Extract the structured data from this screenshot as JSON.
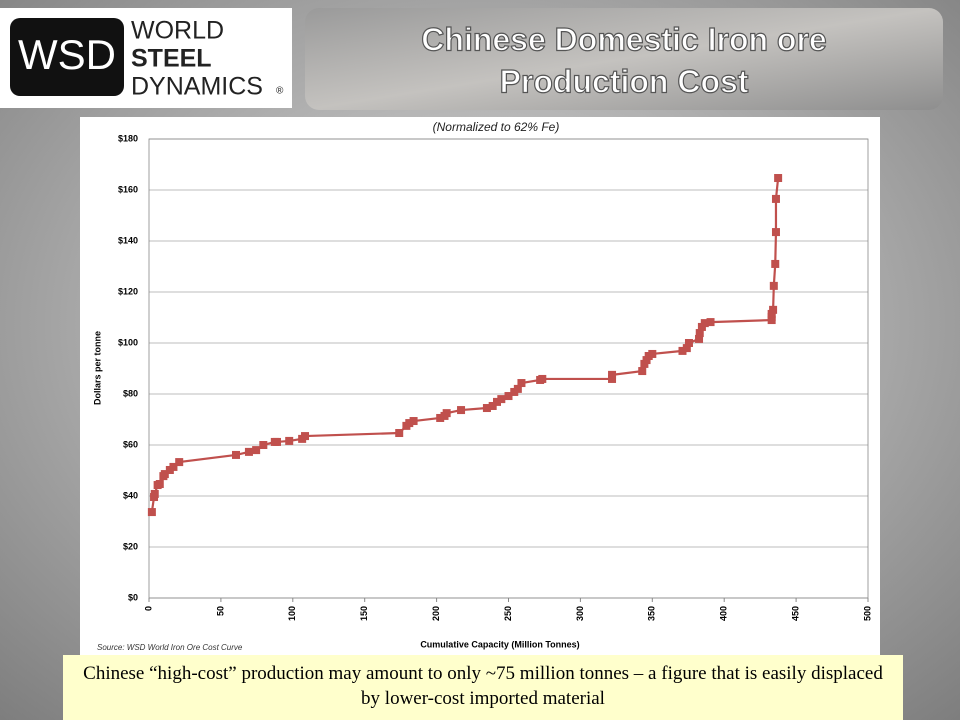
{
  "slide": {
    "logo": {
      "mark": "WSD",
      "lines": [
        "WORLD",
        "STEEL",
        "DYNAMICS"
      ],
      "registered": "®"
    },
    "title": [
      "Chinese Domestic Iron ore",
      "Production Cost"
    ],
    "caption": "Chinese “high-cost” production may amount to only ~75 million tonnes – a figure that is easily displaced by lower-cost imported material"
  },
  "chart_data": {
    "type": "line",
    "subtitle": "(Normalized to 62% Fe)",
    "source": "Source: WSD World Iron Ore Cost Curve",
    "x_label": "Cumulative Capacity (Million Tonnes)",
    "y_label": "Dollars per tonne",
    "color": "#c0504d",
    "grid": true,
    "x": [
      2,
      3.5,
      4,
      6,
      7.5,
      10,
      11,
      14.5,
      17,
      21,
      60.5,
      69.5,
      74.5,
      79.5,
      87.5,
      89,
      97.5,
      106.5,
      108.5,
      174,
      179,
      181,
      184,
      202.5,
      205.5,
      207,
      217,
      235,
      239,
      242,
      245,
      250,
      254,
      256.5,
      259,
      272,
      273.5,
      322,
      322,
      343,
      344.5,
      346,
      347.5,
      350,
      371,
      374,
      375.5,
      382.5,
      383,
      384.5,
      386.5,
      390.5,
      433,
      433,
      433,
      434,
      434.5,
      435.5,
      436,
      436,
      437.5
    ],
    "values": [
      33.7,
      39.6,
      40.8,
      44.3,
      44.7,
      47.8,
      48.6,
      50.2,
      51.4,
      53.3,
      56.1,
      57.3,
      58.0,
      60.0,
      61.2,
      61.2,
      61.6,
      62.4,
      63.5,
      64.7,
      67.5,
      68.6,
      69.4,
      70.6,
      71.4,
      72.5,
      73.7,
      74.5,
      75.3,
      76.9,
      78.0,
      79.2,
      80.8,
      82.0,
      84.3,
      85.5,
      85.9,
      85.9,
      87.5,
      89.0,
      91.8,
      93.3,
      94.9,
      95.7,
      96.9,
      98.0,
      100.0,
      101.6,
      103.9,
      106.3,
      107.8,
      108.2,
      109.0,
      110.2,
      111.4,
      113.0,
      122.4,
      131.0,
      143.5,
      156.5,
      164.7
    ],
    "xlim": [
      0,
      500
    ],
    "xticks": [
      0,
      50,
      100,
      150,
      200,
      250,
      300,
      350,
      400,
      450,
      500
    ],
    "ylim": [
      0,
      180
    ],
    "yticks": [
      {
        "value": 0,
        "label": "$0"
      },
      {
        "value": 20,
        "label": "$20"
      },
      {
        "value": 40,
        "label": "$40"
      },
      {
        "value": 60,
        "label": "$60"
      },
      {
        "value": 80,
        "label": "$80"
      },
      {
        "value": 100,
        "label": "$100"
      },
      {
        "value": 120,
        "label": "$120"
      },
      {
        "value": 140,
        "label": "$140"
      },
      {
        "value": 160,
        "label": "$160"
      },
      {
        "value": 180,
        "label": "$180"
      }
    ]
  }
}
